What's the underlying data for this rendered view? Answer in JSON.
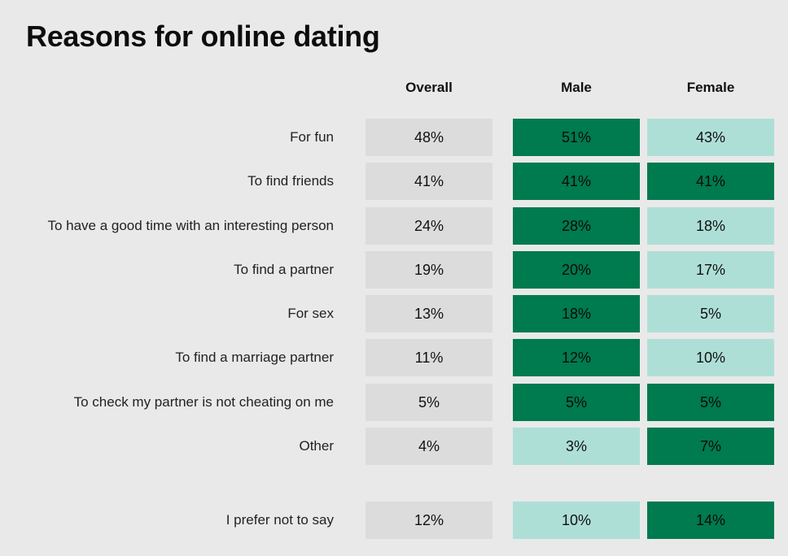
{
  "chart_data": {
    "type": "table",
    "title": "Reasons for online dating",
    "columns": [
      "Overall",
      "Male",
      "Female"
    ],
    "rows": [
      {
        "label": "For fun",
        "values": [
          "48%",
          "51%",
          "43%"
        ],
        "shade": [
          "neutral",
          "higher",
          "lower"
        ]
      },
      {
        "label": "To find friends",
        "values": [
          "41%",
          "41%",
          "41%"
        ],
        "shade": [
          "neutral",
          "higher",
          "higher"
        ]
      },
      {
        "label": "To have a good time with an interesting person",
        "values": [
          "24%",
          "28%",
          "18%"
        ],
        "shade": [
          "neutral",
          "higher",
          "lower"
        ]
      },
      {
        "label": "To find a partner",
        "values": [
          "19%",
          "20%",
          "17%"
        ],
        "shade": [
          "neutral",
          "higher",
          "lower"
        ]
      },
      {
        "label": "For sex",
        "values": [
          "13%",
          "18%",
          "5%"
        ],
        "shade": [
          "neutral",
          "higher",
          "lower"
        ]
      },
      {
        "label": "To find a marriage partner",
        "values": [
          "11%",
          "12%",
          "10%"
        ],
        "shade": [
          "neutral",
          "higher",
          "lower"
        ]
      },
      {
        "label": "To check my partner is not cheating on me",
        "values": [
          "5%",
          "5%",
          "5%"
        ],
        "shade": [
          "neutral",
          "higher",
          "higher"
        ]
      },
      {
        "label": "Other",
        "values": [
          "4%",
          "3%",
          "7%"
        ],
        "shade": [
          "neutral",
          "lower",
          "higher"
        ]
      },
      {
        "label": "I prefer not to say",
        "values": [
          "12%",
          "10%",
          "14%"
        ],
        "shade": [
          "neutral",
          "lower",
          "higher"
        ]
      }
    ],
    "colors": {
      "background": "#e9e9e9",
      "neutral": "#dcdcdc",
      "higher": "#007a4f",
      "lower": "#aedfd6"
    }
  }
}
